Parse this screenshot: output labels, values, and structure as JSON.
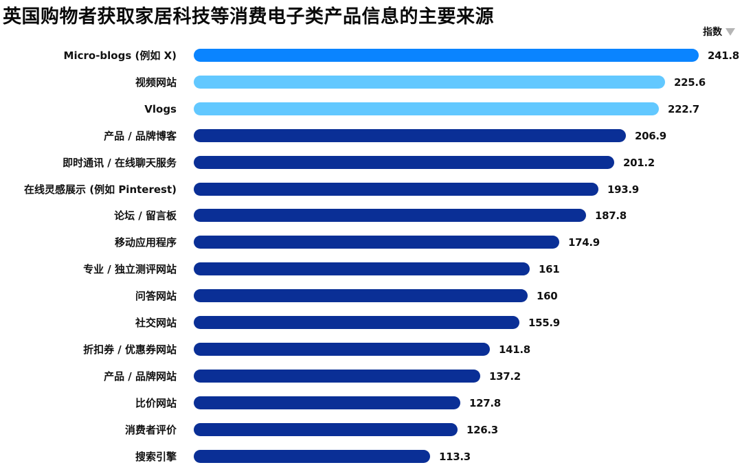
{
  "title": "英国购物者获取家居科技等消费电子类产品信息的主要来源",
  "legend": {
    "label": "指数",
    "sort_icon": "sort-descending-triangle"
  },
  "colors": {
    "top": "#0a84ff",
    "highlight": "#62c8ff",
    "default": "#0a2f96"
  },
  "rows": [
    {
      "label": "Micro-blogs (例如 X)",
      "value": "241.8"
    },
    {
      "label": "视频网站",
      "value": "225.6"
    },
    {
      "label": "Vlogs",
      "value": "222.7"
    },
    {
      "label": "产品 / 品牌博客",
      "value": "206.9"
    },
    {
      "label": "即时通讯 / 在线聊天服务",
      "value": "201.2"
    },
    {
      "label": "在线灵感展示 (例如 Pinterest)",
      "value": "193.9"
    },
    {
      "label": "论坛 / 留言板",
      "value": "187.8"
    },
    {
      "label": "移动应用程序",
      "value": "174.9"
    },
    {
      "label": "专业 / 独立测评网站",
      "value": "161"
    },
    {
      "label": "问答网站",
      "value": "160"
    },
    {
      "label": "社交网站",
      "value": "155.9"
    },
    {
      "label": "折扣券 / 优惠券网站",
      "value": "141.8"
    },
    {
      "label": "产品 / 品牌网站",
      "value": "137.2"
    },
    {
      "label": "比价网站",
      "value": "127.8"
    },
    {
      "label": "消费者评价",
      "value": "126.3"
    },
    {
      "label": "搜索引擎",
      "value": "113.3"
    }
  ],
  "chart_data": {
    "type": "bar",
    "orientation": "horizontal",
    "title": "英国购物者获取家居科技等消费电子类产品信息的主要来源",
    "xlabel": "",
    "ylabel": "",
    "legend": [
      "指数"
    ],
    "legend_position": "top-right",
    "grid": false,
    "categories": [
      "Micro-blogs (例如 X)",
      "视频网站",
      "Vlogs",
      "产品 / 品牌博客",
      "即时通讯 / 在线聊天服务",
      "在线灵感展示 (例如 Pinterest)",
      "论坛 / 留言板",
      "移动应用程序",
      "专业 / 独立测评网站",
      "问答网站",
      "社交网站",
      "折扣券 / 优惠券网站",
      "产品 / 品牌网站",
      "比价网站",
      "消费者评价",
      "搜索引擎"
    ],
    "series": [
      {
        "name": "指数",
        "values": [
          241.8,
          225.6,
          222.7,
          206.9,
          201.2,
          193.9,
          187.8,
          174.9,
          161,
          160,
          155.9,
          141.8,
          137.2,
          127.8,
          126.3,
          113.3
        ]
      }
    ],
    "bar_colors": [
      "#0a84ff",
      "#62c8ff",
      "#62c8ff",
      "#0a2f96",
      "#0a2f96",
      "#0a2f96",
      "#0a2f96",
      "#0a2f96",
      "#0a2f96",
      "#0a2f96",
      "#0a2f96",
      "#0a2f96",
      "#0a2f96",
      "#0a2f96",
      "#0a2f96",
      "#0a2f96"
    ],
    "xlim": [
      0,
      241.8
    ],
    "sort": "descending"
  }
}
